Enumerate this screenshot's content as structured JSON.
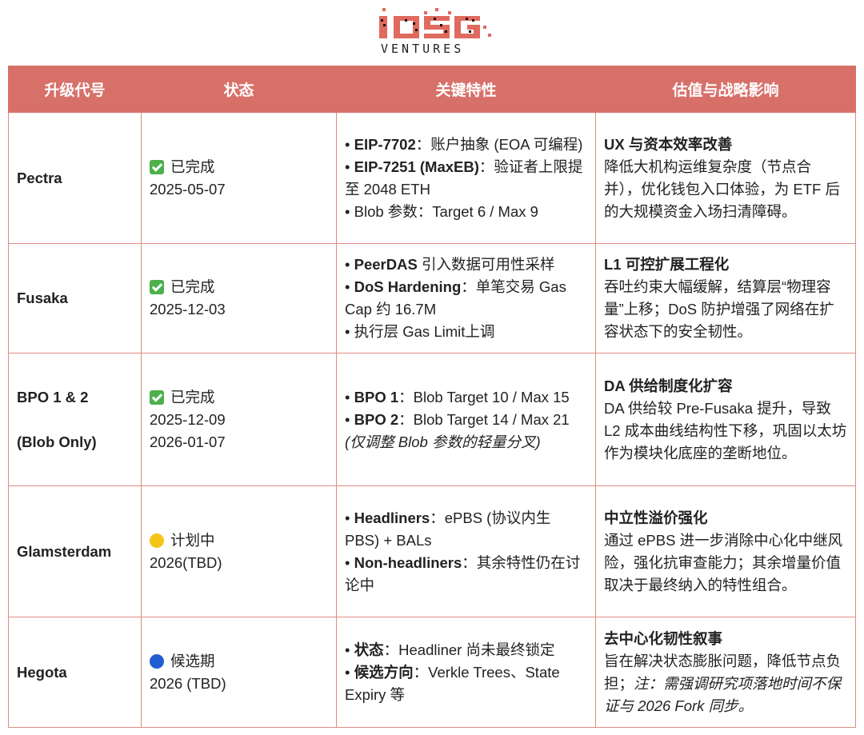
{
  "logo": {
    "text": "IOSG",
    "subtext": "VENTURES",
    "color": "#e06a5e"
  },
  "colors": {
    "header_bg": "#d8706a",
    "border": "#e08a84"
  },
  "headers": [
    "升级代号",
    "状态",
    "关键特性",
    "估值与战略影响"
  ],
  "rows": [
    {
      "name": [
        "Pectra"
      ],
      "status": {
        "icon": "check-mark-icon",
        "label": "已完成",
        "dates": [
          "2025-05-07"
        ]
      },
      "features": [
        [
          {
            "t": "• "
          },
          {
            "t": "EIP-7702",
            "b": 1
          },
          {
            "t": "：账户抽象 (EOA 可编程)"
          }
        ],
        [
          {
            "t": "• "
          },
          {
            "t": "EIP-7251 (MaxEB)",
            "b": 1
          },
          {
            "t": "：验证者上限提至 2048 ETH"
          }
        ],
        [
          {
            "t": "• Blob 参数：Target 6 / Max 9"
          }
        ]
      ],
      "impact": {
        "title": "UX 与资本效率改善",
        "body": [
          {
            "t": "降低大机构运维复杂度（节点合并），优化钱包入口体验，为 ETF 后的大规模资金入场扫清障碍。"
          }
        ]
      }
    },
    {
      "name": [
        "Fusaka"
      ],
      "status": {
        "icon": "check-mark-icon",
        "label": "已完成",
        "dates": [
          "2025-12-03"
        ]
      },
      "features": [
        [
          {
            "t": "• "
          },
          {
            "t": "PeerDAS",
            "b": 1
          },
          {
            "t": " 引入数据可用性采样"
          }
        ],
        [
          {
            "t": "• "
          },
          {
            "t": "DoS Hardening",
            "b": 1
          },
          {
            "t": "：单笔交易 Gas Cap 约 16.7M"
          }
        ],
        [
          {
            "t": "• 执行层 Gas Limit上调"
          }
        ]
      ],
      "impact": {
        "title": "L1 可控扩展工程化",
        "body": [
          {
            "t": "吞吐约束大幅缓解，结算层“物理容量”上移；DoS 防护增强了网络在扩容状态下的安全韧性。"
          }
        ]
      }
    },
    {
      "name": [
        "BPO 1 & 2",
        "(Blob Only)"
      ],
      "status": {
        "icon": "check-mark-icon",
        "label": "已完成",
        "dates": [
          "2025-12-09",
          "2026-01-07"
        ]
      },
      "features": [
        [
          {
            "t": "• "
          },
          {
            "t": "BPO 1",
            "b": 1
          },
          {
            "t": "：Blob Target 10 / Max 15"
          }
        ],
        [
          {
            "t": "• "
          },
          {
            "t": "BPO 2",
            "b": 1
          },
          {
            "t": "：Blob Target 14 / Max 21"
          }
        ],
        [
          {
            "t": "(仅调整 Blob 参数的轻量分叉)",
            "i": 1
          }
        ]
      ],
      "impact": {
        "title": "DA 供给制度化扩容",
        "body": [
          {
            "t": "DA 供给较 Pre-Fusaka 提升，导致 L2 成本曲线结构性下移，巩固以太坊作为模块化底座的垄断地位。"
          }
        ]
      }
    },
    {
      "name": [
        "Glamsterdam"
      ],
      "status": {
        "icon": "yellow-circle-icon",
        "label": "计划中",
        "dates": [
          "2026(TBD)"
        ]
      },
      "features": [
        [
          {
            "t": "• "
          },
          {
            "t": "Headliners",
            "b": 1
          },
          {
            "t": "：ePBS (协议内生 PBS) + BALs"
          }
        ],
        [
          {
            "t": "• "
          },
          {
            "t": "Non-headliners",
            "b": 1
          },
          {
            "t": "：其余特性仍在讨论中"
          }
        ]
      ],
      "impact": {
        "title": "中立性溢价强化",
        "body": [
          {
            "t": "通过 ePBS 进一步消除中心化中继风险，强化抗审查能力；其余增量价值取决于最终纳入的特性组合。"
          }
        ]
      }
    },
    {
      "name": [
        "Hegota"
      ],
      "status": {
        "icon": "blue-circle-icon",
        "label": "候选期",
        "dates": [
          "2026 (TBD)"
        ]
      },
      "features": [
        [
          {
            "t": "• "
          },
          {
            "t": "状态",
            "b": 1
          },
          {
            "t": "：Headliner 尚未最终锁定"
          }
        ],
        [
          {
            "t": "• "
          },
          {
            "t": "候选方向",
            "b": 1
          },
          {
            "t": "：Verkle Trees、State Expiry 等"
          }
        ]
      ],
      "impact": {
        "title": "去中心化韧性叙事",
        "body": [
          {
            "t": "旨在解决状态膨胀问题，降低节点负担；"
          },
          {
            "t": "注：需强调研究项落地时间不保证与 2026 Fork 同步。",
            "i": 1
          }
        ]
      }
    }
  ]
}
